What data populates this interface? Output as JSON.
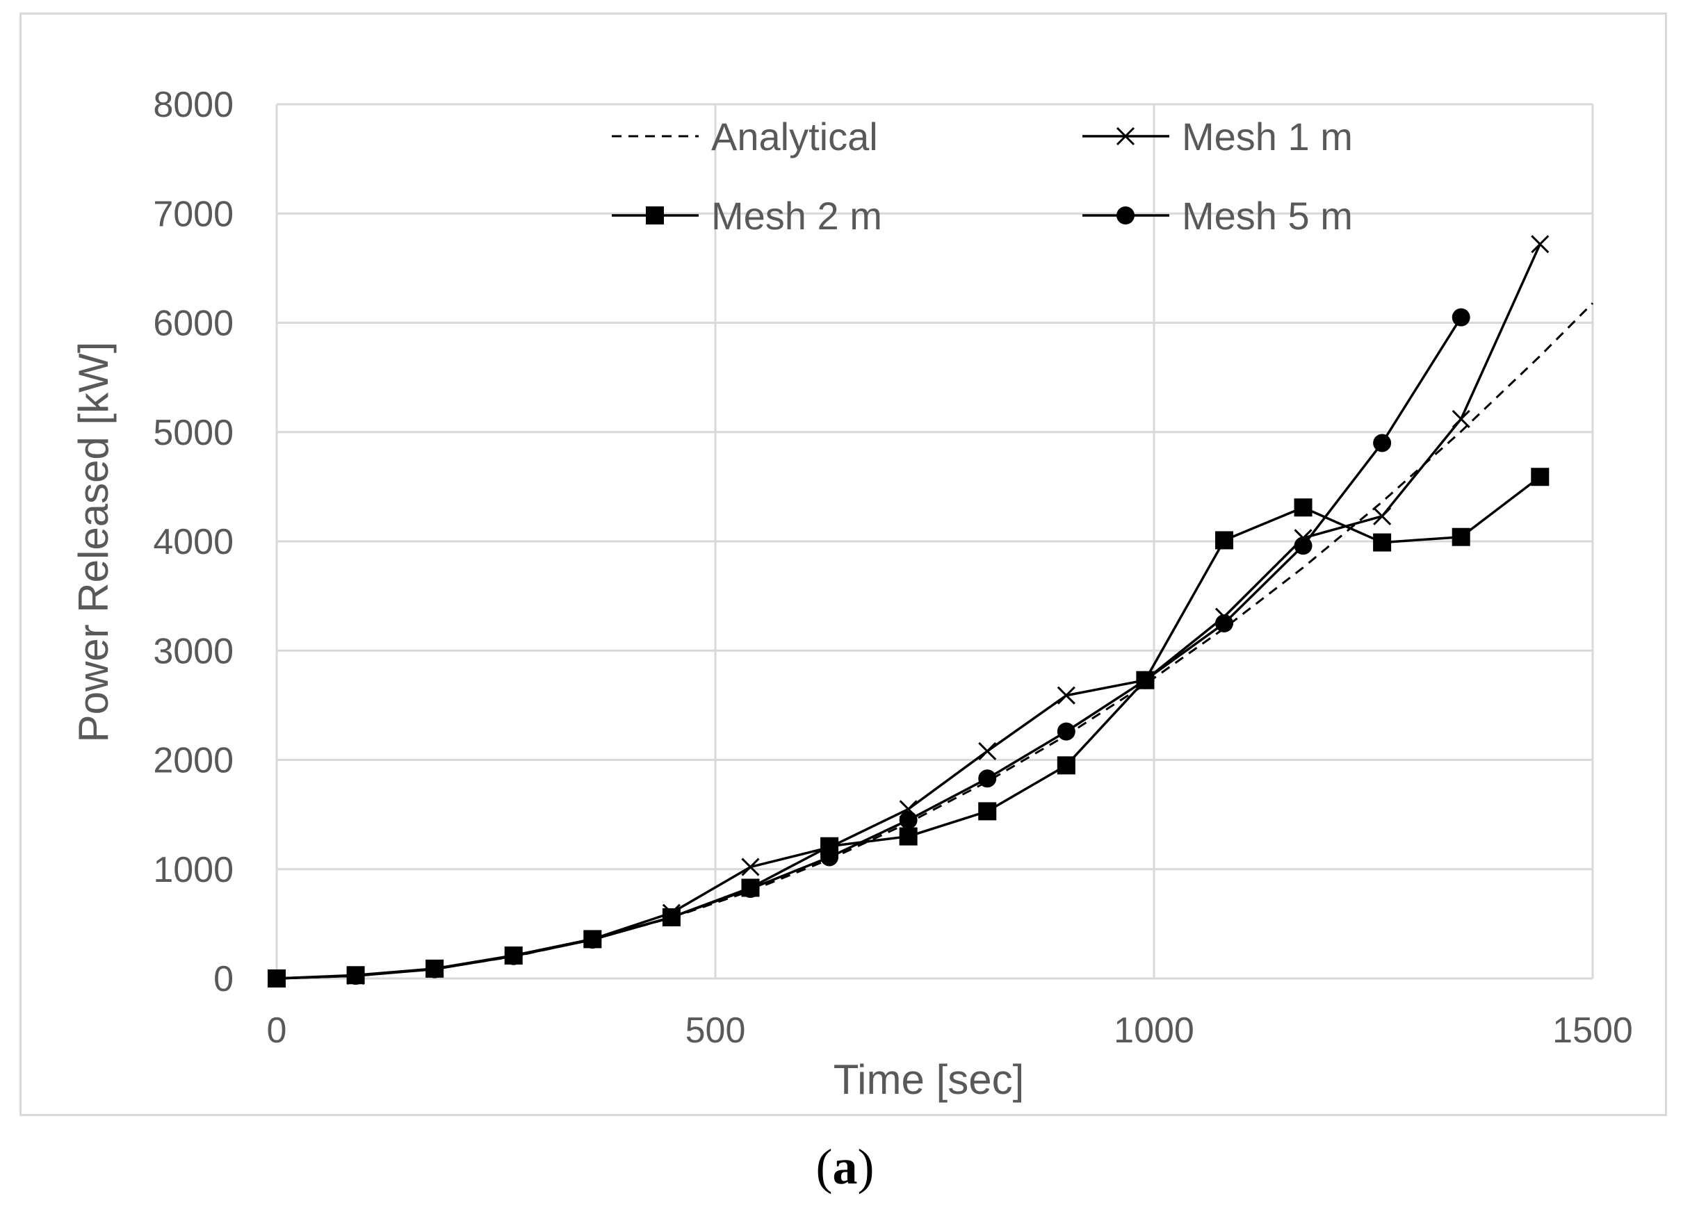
{
  "chart_data": {
    "type": "line",
    "xlabel": "Time [sec]",
    "ylabel": "Power Released [kW]",
    "xlim": [
      0,
      1500
    ],
    "ylim": [
      0,
      8000
    ],
    "x_ticks": [
      0,
      500,
      1000,
      1500
    ],
    "y_ticks": [
      0,
      1000,
      2000,
      3000,
      4000,
      5000,
      6000,
      7000,
      8000
    ],
    "grid": true,
    "legend_position": "top-inside",
    "series": [
      {
        "name": "Analytical",
        "style": "dashed",
        "marker": "none",
        "color": "#000000",
        "x": [
          0,
          90,
          180,
          270,
          360,
          450,
          540,
          630,
          720,
          810,
          900,
          990,
          1080,
          1170,
          1260,
          1350,
          1440,
          1500
        ],
        "y": [
          0,
          22,
          89,
          200,
          356,
          556,
          801,
          1090,
          1424,
          1802,
          2225,
          2692,
          3204,
          3760,
          4361,
          5006,
          5696,
          6180
        ]
      },
      {
        "name": "Mesh 1 m",
        "style": "solid",
        "marker": "x",
        "color": "#000000",
        "x": [
          0,
          90,
          180,
          270,
          360,
          450,
          540,
          630,
          720,
          810,
          900,
          990,
          1080,
          1170,
          1260,
          1350,
          1440
        ],
        "y": [
          0,
          25,
          90,
          210,
          360,
          600,
          1020,
          1200,
          1550,
          2080,
          2590,
          2730,
          3310,
          4030,
          4230,
          5120,
          6720
        ]
      },
      {
        "name": "Mesh 2 m",
        "style": "solid",
        "marker": "square",
        "color": "#000000",
        "x": [
          0,
          90,
          180,
          270,
          360,
          450,
          540,
          630,
          720,
          810,
          900,
          990,
          1080,
          1170,
          1260,
          1350,
          1440
        ],
        "y": [
          0,
          30,
          90,
          210,
          360,
          560,
          830,
          1210,
          1300,
          1530,
          1950,
          2730,
          4010,
          4310,
          3990,
          4040,
          4590
        ]
      },
      {
        "name": "Mesh 5 m",
        "style": "solid",
        "marker": "circle",
        "color": "#000000",
        "x": [
          0,
          90,
          180,
          270,
          360,
          450,
          540,
          630,
          720,
          810,
          900,
          990,
          1080,
          1170,
          1260,
          1350
        ],
        "y": [
          0,
          25,
          85,
          205,
          355,
          560,
          820,
          1110,
          1450,
          1830,
          2260,
          2730,
          3250,
          3960,
          4900,
          6050
        ]
      }
    ]
  },
  "caption": {
    "open": "(",
    "letter": "a",
    "close": ")"
  }
}
